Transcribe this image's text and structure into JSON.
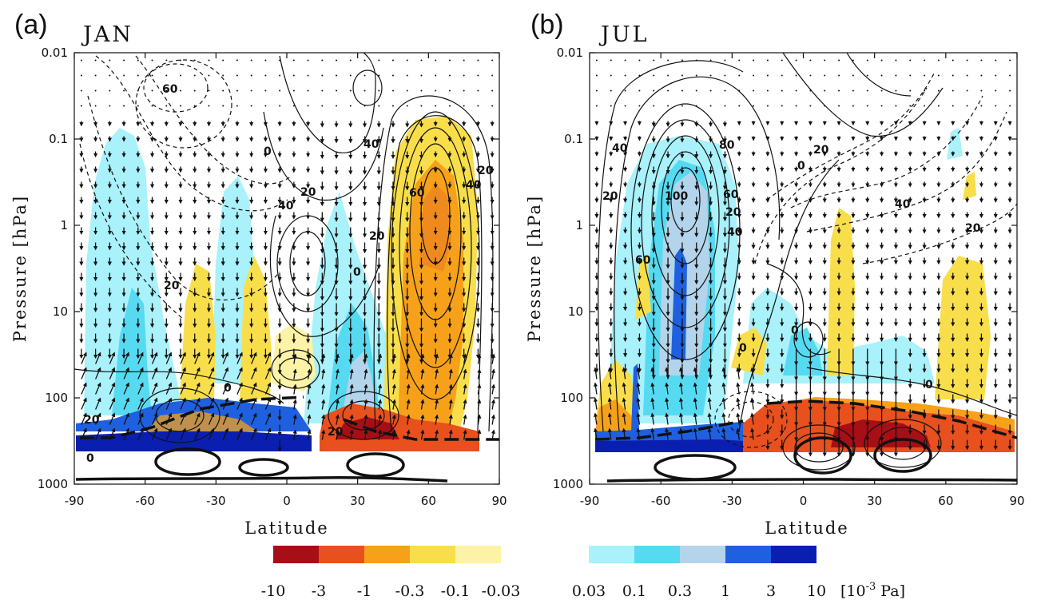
{
  "chart_data": [
    {
      "type": "heatmap",
      "panel_label": "(a)",
      "title": "JAN",
      "xlabel": "Latitude",
      "ylabel": "Pressure [hPa]",
      "x_ticks": [
        -90,
        -60,
        -30,
        0,
        30,
        60,
        90
      ],
      "y_ticks": [
        "0.01",
        "0.1",
        "1",
        "10",
        "100",
        "1000"
      ],
      "xlim": [
        -90,
        90
      ],
      "ylim": [
        1000,
        0.01
      ],
      "y_scale": "log",
      "contour_labels": [
        "60",
        "0",
        "40",
        "20",
        "40",
        "20",
        "20",
        "0",
        "60",
        "40",
        "20",
        "20",
        "0",
        "20",
        "0"
      ]
    },
    {
      "type": "heatmap",
      "panel_label": "(b)",
      "title": "JUL",
      "xlabel": "Latitude",
      "ylabel": "Pressure [hPa]",
      "x_ticks": [
        -90,
        -60,
        -30,
        0,
        30,
        60,
        90
      ],
      "y_ticks": [
        "0.01",
        "0.1",
        "1",
        "10",
        "100",
        "1000"
      ],
      "xlim": [
        -90,
        90
      ],
      "ylim": [
        1000,
        0.01
      ],
      "y_scale": "log",
      "contour_labels": [
        "40",
        "20",
        "80",
        "100",
        "60",
        "40",
        "20",
        "60",
        "0",
        "20",
        "40",
        "20",
        "0",
        "0",
        "0"
      ]
    }
  ],
  "colorbar": {
    "negative": [
      {
        "label": "-10",
        "color": "#a50f15"
      },
      {
        "label": "-3",
        "color": "#e8501e"
      },
      {
        "label": "-1",
        "color": "#f7a11a"
      },
      {
        "label": "-0.3",
        "color": "#f9de4b"
      },
      {
        "label": "-0.1",
        "color": "#fdf3a6"
      },
      {
        "label": "-0.03",
        "color": ""
      }
    ],
    "positive": [
      {
        "label": "0.03",
        "color": "#a9f1fb"
      },
      {
        "label": "0.1",
        "color": "#56daf2"
      },
      {
        "label": "0.3",
        "color": "#b3d4ea"
      },
      {
        "label": "1",
        "color": "#1f60e0"
      },
      {
        "label": "3",
        "color": "#0a1fb0"
      },
      {
        "label": "10",
        "color": ""
      }
    ],
    "unit_prefix": "[10",
    "unit_exp": "-3",
    "unit_suffix": " Pa]"
  }
}
